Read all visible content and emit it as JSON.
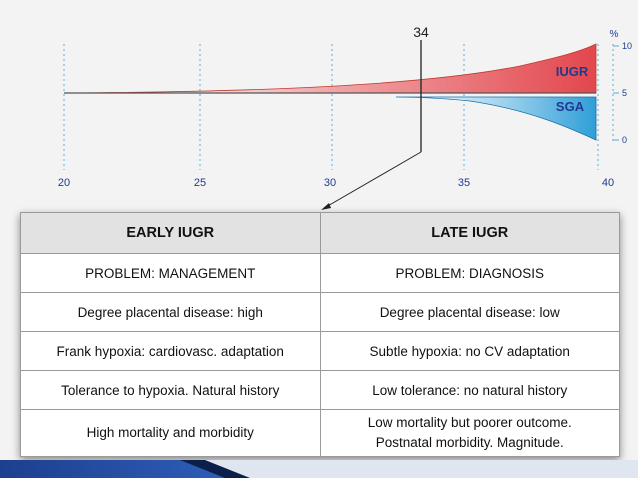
{
  "diagram": {
    "marker_label": "34",
    "x_ticks": [
      "20",
      "25",
      "30",
      "35",
      "40"
    ],
    "right_axis_unit": "%",
    "right_axis_ticks": [
      "10",
      "5",
      "0"
    ],
    "upper_region_label": "IUGR",
    "lower_region_label": "SGA",
    "colors": {
      "iugr": "#e2474d",
      "sga": "#2f9fd8",
      "label_text": "#1f3a8f",
      "grid": "#5aaed8"
    }
  },
  "table": {
    "headers": [
      "EARLY IUGR",
      "LATE IUGR"
    ],
    "rows": [
      [
        "PROBLEM: MANAGEMENT",
        "PROBLEM: DIAGNOSIS"
      ],
      [
        "Degree placental disease: high",
        "Degree placental disease: low"
      ],
      [
        "Frank hypoxia: cardiovasc. adaptation",
        "Subtle hypoxia: no CV adaptation"
      ],
      [
        "Tolerance to hypoxia. Natural history",
        "Low tolerance: no natural history"
      ]
    ],
    "last_row": {
      "left": "High mortality and morbidity",
      "right_line1": "Low mortality but poorer outcome.",
      "right_line2": "Postnatal morbidity. Magnitude."
    }
  }
}
